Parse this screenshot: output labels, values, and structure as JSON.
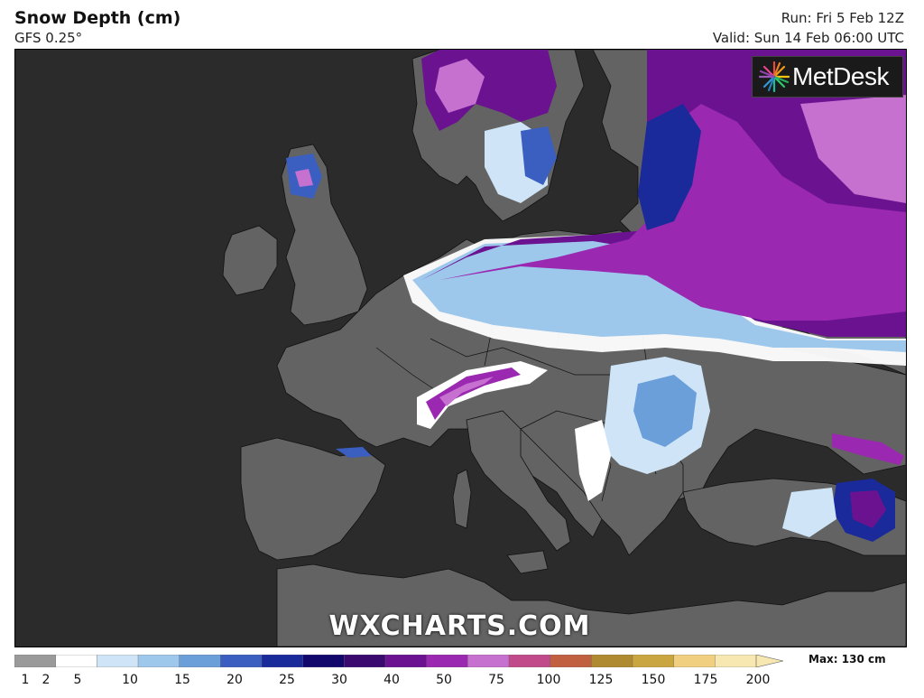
{
  "header": {
    "title": "Snow Depth (cm)",
    "subtitle": "GFS 0.25°",
    "run": "Run: Fri 5 Feb 12Z",
    "valid": "Valid: Sun 14 Feb 06:00 UTC"
  },
  "logo": {
    "text": "MetDesk",
    "icon": "metdesk-starburst-icon"
  },
  "watermark": "WXCHARTS.COM",
  "legend": {
    "max_label": "Max: 130 cm",
    "levels": [
      "1",
      "2",
      "5",
      "10",
      "15",
      "20",
      "25",
      "30",
      "40",
      "50",
      "75",
      "100",
      "125",
      "150",
      "175",
      "200"
    ],
    "colors": [
      "#9a9a9a",
      "#ffffff",
      "#cfe5f7",
      "#9ec7ec",
      "#6a9fd9",
      "#3a5fc0",
      "#1a2a9a",
      "#12086c",
      "#3a0a6e",
      "#6a1290",
      "#9a28b0",
      "#c670d0",
      "#c04a8a",
      "#c06040",
      "#b08a30",
      "#c9a640",
      "#f0cf80",
      "#f7e7b0"
    ]
  },
  "colors": {
    "sea": "#2b2b2b",
    "land": "#636363",
    "border": "#111111"
  }
}
